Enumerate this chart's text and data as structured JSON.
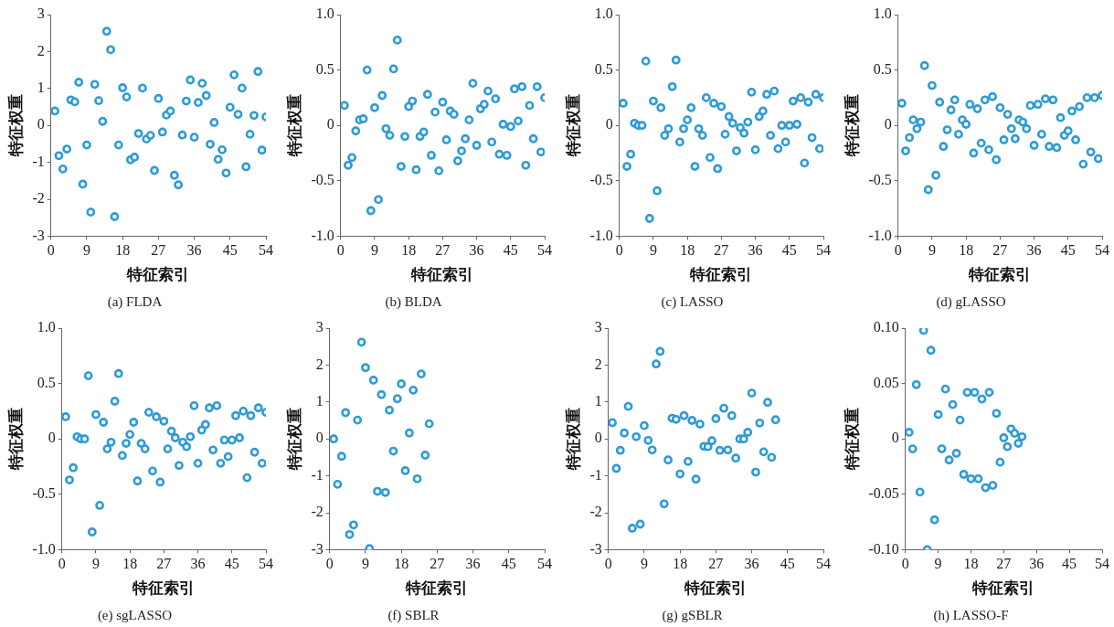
{
  "chart_data": [
    {
      "type": "scatter",
      "title": "(a) FLDA",
      "xlabel": "特征索引",
      "ylabel": "特征权重",
      "marker": "circle",
      "xlim": [
        0,
        54
      ],
      "xticks": [
        0,
        9,
        18,
        27,
        36,
        45,
        54
      ],
      "ylim": [
        -3,
        3
      ],
      "yticks": [
        -3,
        -2,
        -1,
        0,
        1,
        2,
        3
      ],
      "x": [
        1,
        2,
        3,
        4,
        5,
        6,
        7,
        8,
        9,
        10,
        11,
        12,
        13,
        14,
        15,
        16,
        17,
        18,
        19,
        20,
        21,
        22,
        23,
        24,
        25,
        26,
        27,
        28,
        29,
        30,
        31,
        32,
        33,
        34,
        35,
        36,
        37,
        38,
        39,
        40,
        41,
        42,
        43,
        44,
        45,
        46,
        47,
        48,
        49,
        50,
        51,
        52,
        53,
        54
      ],
      "series": [
        {
          "color": "#2e9bd6",
          "values": [
            0.39,
            -0.82,
            -1.18,
            -0.64,
            0.69,
            0.64,
            1.17,
            -1.59,
            -0.53,
            -2.35,
            1.11,
            0.67,
            0.11,
            2.55,
            2.05,
            -2.47,
            -0.53,
            1.02,
            0.77,
            -0.93,
            -0.86,
            -0.22,
            1.01,
            -0.37,
            -0.27,
            -1.22,
            0.73,
            -0.18,
            0.28,
            0.39,
            -1.35,
            -1.61,
            -0.26,
            0.66,
            1.23,
            -0.32,
            0.62,
            1.14,
            0.81,
            -0.51,
            0.08,
            -0.92,
            -0.66,
            -1.29,
            0.49,
            1.37,
            0.3,
            1.01,
            -1.12,
            -0.24,
            0.27,
            1.46,
            -0.67,
            0.23
          ]
        }
      ]
    },
    {
      "type": "scatter",
      "title": "(b) BLDA",
      "xlabel": "特征索引",
      "ylabel": "特征权重",
      "marker": "circle",
      "xlim": [
        0,
        54
      ],
      "xticks": [
        0,
        9,
        18,
        27,
        36,
        45,
        54
      ],
      "ylim": [
        -1,
        1
      ],
      "yticks": [
        {
          "value": -1,
          "label": "-1.0"
        },
        {
          "value": -0.5,
          "label": "-0.5"
        },
        0,
        {
          "value": 0.5,
          "label": "0.5"
        },
        {
          "value": 1,
          "label": "1.0"
        }
      ],
      "x": [
        1,
        2,
        3,
        4,
        5,
        6,
        7,
        8,
        9,
        10,
        11,
        12,
        13,
        14,
        15,
        16,
        17,
        18,
        19,
        20,
        21,
        22,
        23,
        24,
        25,
        26,
        27,
        28,
        29,
        30,
        31,
        32,
        33,
        34,
        35,
        36,
        37,
        38,
        39,
        40,
        41,
        42,
        43,
        44,
        45,
        46,
        47,
        48,
        49,
        50,
        51,
        52,
        53,
        54
      ],
      "series": [
        {
          "color": "#2e9bd6",
          "values": [
            0.18,
            -0.36,
            -0.29,
            -0.05,
            0.05,
            0.06,
            0.5,
            -0.77,
            0.16,
            -0.67,
            0.27,
            -0.03,
            -0.09,
            0.51,
            0.77,
            -0.37,
            -0.1,
            0.17,
            0.22,
            -0.4,
            -0.1,
            -0.06,
            0.28,
            -0.27,
            0.12,
            -0.41,
            0.21,
            -0.13,
            0.13,
            0.1,
            -0.32,
            -0.23,
            -0.12,
            0.05,
            0.38,
            -0.18,
            0.15,
            0.19,
            0.31,
            -0.15,
            0.24,
            -0.26,
            0.01,
            -0.27,
            -0.01,
            0.33,
            0.04,
            0.35,
            -0.36,
            0.18,
            -0.12,
            0.35,
            -0.24,
            0.25
          ]
        }
      ]
    },
    {
      "type": "scatter",
      "title": "(c) LASSO",
      "xlabel": "特征索引",
      "ylabel": "特征权重",
      "marker": "circle",
      "xlim": [
        0,
        54
      ],
      "xticks": [
        0,
        9,
        18,
        27,
        36,
        45,
        54
      ],
      "ylim": [
        -1,
        1
      ],
      "yticks": [
        {
          "value": -1,
          "label": "-1.0"
        },
        {
          "value": -0.5,
          "label": "-0.5"
        },
        0,
        {
          "value": 0.5,
          "label": "0.5"
        },
        {
          "value": 1,
          "label": "1.0"
        }
      ],
      "x": [
        1,
        2,
        3,
        4,
        5,
        6,
        7,
        8,
        9,
        10,
        11,
        12,
        13,
        14,
        15,
        16,
        17,
        18,
        19,
        20,
        21,
        22,
        23,
        24,
        25,
        26,
        27,
        28,
        29,
        30,
        31,
        32,
        33,
        34,
        35,
        36,
        37,
        38,
        39,
        40,
        41,
        42,
        43,
        44,
        45,
        46,
        47,
        48,
        49,
        50,
        51,
        52,
        53,
        54
      ],
      "series": [
        {
          "color": "#2e9bd6",
          "values": [
            0.2,
            -0.37,
            -0.26,
            0.02,
            0.0,
            0.0,
            0.58,
            -0.84,
            0.22,
            -0.59,
            0.16,
            -0.09,
            -0.03,
            0.35,
            0.59,
            -0.15,
            -0.03,
            0.05,
            0.16,
            -0.37,
            -0.03,
            -0.09,
            0.25,
            -0.29,
            0.2,
            -0.39,
            0.17,
            -0.08,
            0.08,
            0.02,
            -0.23,
            -0.02,
            -0.07,
            0.03,
            0.3,
            -0.22,
            0.08,
            0.13,
            0.28,
            -0.09,
            0.31,
            -0.21,
            0.0,
            -0.15,
            0.0,
            0.22,
            0.01,
            0.25,
            -0.34,
            0.21,
            -0.11,
            0.28,
            -0.21,
            0.25
          ]
        }
      ]
    },
    {
      "type": "scatter",
      "title": "(d) gLASSO",
      "xlabel": "特征索引",
      "ylabel": "特征权重",
      "marker": "circle",
      "xlim": [
        0,
        54
      ],
      "xticks": [
        0,
        9,
        18,
        27,
        36,
        45,
        54
      ],
      "ylim": [
        -1,
        1
      ],
      "yticks": [
        {
          "value": -1,
          "label": "-1.0"
        },
        {
          "value": -0.5,
          "label": "-0.5"
        },
        0,
        {
          "value": 0.5,
          "label": "0.5"
        },
        {
          "value": 1,
          "label": "1.0"
        }
      ],
      "x": [
        1,
        2,
        3,
        4,
        5,
        6,
        7,
        8,
        9,
        10,
        11,
        12,
        13,
        14,
        15,
        16,
        17,
        18,
        19,
        20,
        21,
        22,
        23,
        24,
        25,
        26,
        27,
        28,
        29,
        30,
        31,
        32,
        33,
        34,
        35,
        36,
        37,
        38,
        39,
        40,
        41,
        42,
        43,
        44,
        45,
        46,
        47,
        48,
        49,
        50,
        51,
        52,
        53,
        54
      ],
      "series": [
        {
          "color": "#2e9bd6",
          "values": [
            0.2,
            -0.23,
            -0.11,
            0.05,
            -0.03,
            0.03,
            0.54,
            -0.58,
            0.36,
            -0.45,
            0.21,
            -0.19,
            -0.04,
            0.14,
            0.23,
            -0.08,
            0.05,
            0.01,
            0.19,
            -0.25,
            0.15,
            -0.16,
            0.23,
            -0.22,
            0.26,
            -0.31,
            0.16,
            -0.13,
            0.1,
            -0.03,
            -0.12,
            0.05,
            0.03,
            -0.03,
            0.18,
            -0.18,
            0.19,
            -0.08,
            0.24,
            -0.19,
            0.23,
            -0.2,
            0.07,
            -0.09,
            -0.05,
            0.13,
            -0.13,
            0.17,
            -0.35,
            0.25,
            -0.24,
            0.25,
            -0.3,
            0.27
          ]
        }
      ]
    },
    {
      "type": "scatter",
      "title": "(e) sgLASSO",
      "xlabel": "特征索引",
      "ylabel": "特征权重",
      "marker": "circle",
      "xlim": [
        0,
        54
      ],
      "xticks": [
        0,
        9,
        18,
        27,
        36,
        45,
        54
      ],
      "ylim": [
        -1,
        1
      ],
      "yticks": [
        {
          "value": -1,
          "label": "-1.0"
        },
        {
          "value": -0.5,
          "label": "-0.5"
        },
        0,
        {
          "value": 0.5,
          "label": "0.5"
        },
        {
          "value": 1,
          "label": "1.0"
        }
      ],
      "x": [
        1,
        2,
        3,
        4,
        5,
        6,
        7,
        8,
        9,
        10,
        11,
        12,
        13,
        14,
        15,
        16,
        17,
        18,
        19,
        20,
        21,
        22,
        23,
        24,
        25,
        26,
        27,
        28,
        29,
        30,
        31,
        32,
        33,
        34,
        35,
        36,
        37,
        38,
        39,
        40,
        41,
        42,
        43,
        44,
        45,
        46,
        47,
        48,
        49,
        50,
        51,
        52,
        53,
        54
      ],
      "series": [
        {
          "color": "#2e9bd6",
          "values": [
            0.2,
            -0.37,
            -0.26,
            0.02,
            0.0,
            0.0,
            0.57,
            -0.84,
            0.22,
            -0.6,
            0.15,
            -0.09,
            -0.03,
            0.34,
            0.59,
            -0.15,
            -0.04,
            0.04,
            0.15,
            -0.38,
            -0.04,
            -0.09,
            0.24,
            -0.29,
            0.2,
            -0.39,
            0.16,
            -0.09,
            0.07,
            0.01,
            -0.24,
            -0.03,
            -0.07,
            0.02,
            0.3,
            -0.22,
            0.08,
            0.13,
            0.28,
            -0.1,
            0.3,
            -0.22,
            -0.01,
            -0.16,
            -0.01,
            0.21,
            0.01,
            0.25,
            -0.35,
            0.21,
            -0.12,
            0.28,
            -0.22,
            0.24
          ]
        }
      ]
    },
    {
      "type": "scatter",
      "title": "(f) SBLR",
      "xlabel": "特征索引",
      "ylabel": "特征权重",
      "marker": "circle",
      "xlim": [
        0,
        54
      ],
      "xticks": [
        0,
        9,
        18,
        27,
        36,
        45,
        54
      ],
      "ylim": [
        -3,
        3
      ],
      "yticks": [
        -3,
        -2,
        -1,
        0,
        1,
        2,
        3
      ],
      "x": [
        1,
        2,
        3,
        4,
        5,
        6,
        7,
        8,
        9,
        10,
        11,
        12,
        13,
        14,
        15,
        16,
        17,
        18,
        19,
        20,
        21,
        22,
        23,
        24,
        25
      ],
      "series": [
        {
          "color": "#2e9bd6",
          "values": [
            0.0,
            -1.23,
            -0.47,
            0.71,
            -2.59,
            -2.33,
            0.51,
            2.62,
            1.93,
            -2.97,
            1.59,
            -1.42,
            1.2,
            -1.45,
            0.78,
            -0.33,
            1.09,
            1.49,
            -0.86,
            0.16,
            1.32,
            -1.08,
            1.76,
            -0.44,
            0.41
          ]
        }
      ]
    },
    {
      "type": "scatter",
      "title": "(g) gSBLR",
      "xlabel": "特征索引",
      "ylabel": "特征权重",
      "marker": "circle",
      "xlim": [
        0,
        54
      ],
      "xticks": [
        0,
        9,
        18,
        27,
        36,
        45,
        54
      ],
      "ylim": [
        -3,
        3
      ],
      "yticks": [
        -3,
        -2,
        -1,
        0,
        1,
        2,
        3
      ],
      "x": [
        1,
        2,
        3,
        4,
        5,
        6,
        7,
        8,
        9,
        10,
        11,
        12,
        13,
        14,
        15,
        16,
        17,
        18,
        19,
        20,
        21,
        22,
        23,
        24,
        25,
        26,
        27,
        28,
        29,
        30,
        31,
        32,
        33,
        34,
        35,
        36,
        37,
        38,
        39,
        40,
        41,
        42
      ],
      "series": [
        {
          "color": "#2e9bd6",
          "values": [
            0.44,
            -0.8,
            -0.31,
            0.16,
            0.88,
            -2.42,
            0.06,
            -2.31,
            0.36,
            -0.04,
            -0.3,
            2.03,
            2.37,
            -1.76,
            -0.57,
            0.56,
            0.53,
            -0.95,
            0.63,
            -0.61,
            0.5,
            -1.09,
            0.4,
            -0.2,
            -0.21,
            -0.05,
            0.55,
            -0.31,
            0.83,
            -0.3,
            0.63,
            -0.52,
            0.0,
            0.0,
            0.18,
            1.24,
            -0.9,
            0.43,
            -0.35,
            0.99,
            -0.5,
            0.52
          ]
        }
      ]
    },
    {
      "type": "scatter",
      "title": "(h) LASSO-F",
      "xlabel": "特征索引",
      "ylabel": "特征权重",
      "marker": "circle",
      "xlim": [
        0,
        54
      ],
      "xticks": [
        0,
        9,
        18,
        27,
        36,
        45,
        54
      ],
      "ylim": [
        -0.1,
        0.1
      ],
      "yticks": [
        {
          "value": -0.1,
          "label": "-0.10"
        },
        {
          "value": -0.05,
          "label": "-0.05"
        },
        0,
        {
          "value": 0.05,
          "label": "0.05"
        },
        {
          "value": 0.1,
          "label": "0.10"
        }
      ],
      "x": [
        1,
        2,
        3,
        4,
        5,
        6,
        7,
        8,
        9,
        10,
        11,
        12,
        13,
        14,
        15,
        16,
        17,
        18,
        19,
        20,
        21,
        22,
        23,
        24,
        25,
        26,
        27,
        28,
        29,
        30,
        31,
        32
      ],
      "series": [
        {
          "color": "#2e9bd6",
          "values": [
            0.006,
            -0.009,
            0.049,
            -0.048,
            0.098,
            -0.1,
            0.08,
            -0.073,
            0.022,
            -0.009,
            0.045,
            -0.019,
            0.031,
            -0.013,
            0.017,
            -0.032,
            0.042,
            -0.036,
            0.042,
            -0.036,
            0.036,
            -0.044,
            0.042,
            -0.042,
            0.023,
            -0.021,
            0.001,
            -0.007,
            0.009,
            0.005,
            -0.004,
            0.002
          ]
        }
      ]
    }
  ]
}
